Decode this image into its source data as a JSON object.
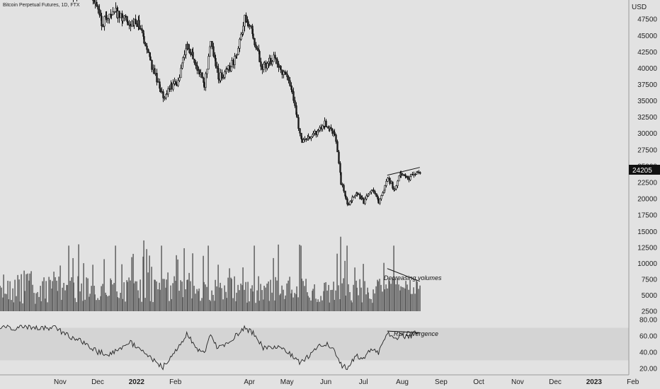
{
  "title": "Bitcoin Perpetual Futures, 1D, FTX",
  "currency": "USD",
  "last_price": "24205",
  "x_labels": [
    "Nov",
    "Dec",
    "2022",
    "Feb",
    "Apr",
    "May",
    "Jun",
    "Jul",
    "Aug",
    "Sep",
    "Oct",
    "Nov",
    "Dec",
    "2023",
    "Feb"
  ],
  "colors": {
    "background": "#e2e2e2",
    "candle": "#1a1a1a",
    "volume": "#555555",
    "rsi_band": "#d4d4d4"
  },
  "chart_data": [
    {
      "type": "candlestick",
      "name": "price",
      "yticks": [
        17500,
        20000,
        22500,
        25000,
        27500,
        30000,
        32500,
        35000,
        37500,
        40000,
        42500,
        45000,
        47500
      ],
      "ylim": [
        15000,
        50000
      ],
      "path": [
        [
          "2021-10-28",
          56000
        ],
        [
          "2021-11-10",
          51000
        ],
        [
          "2021-11-25",
          52000
        ],
        [
          "2021-12-04",
          47000
        ],
        [
          "2021-12-15",
          48500
        ],
        [
          "2021-12-27",
          47000
        ],
        [
          "2022-01-02",
          47000
        ],
        [
          "2022-01-10",
          42000
        ],
        [
          "2022-01-22",
          35500
        ],
        [
          "2022-01-27",
          37000
        ],
        [
          "2022-02-03",
          38000
        ],
        [
          "2022-02-10",
          44000
        ],
        [
          "2022-02-18",
          40000
        ],
        [
          "2022-02-24",
          37500
        ],
        [
          "2022-03-01",
          44000
        ],
        [
          "2022-03-07",
          38500
        ],
        [
          "2022-03-14",
          39500
        ],
        [
          "2022-03-22",
          42000
        ],
        [
          "2022-03-28",
          47500
        ],
        [
          "2022-04-02",
          46000
        ],
        [
          "2022-04-11",
          40000
        ],
        [
          "2022-04-20",
          41500
        ],
        [
          "2022-05-01",
          38500
        ],
        [
          "2022-05-05",
          36000
        ],
        [
          "2022-05-12",
          29000
        ],
        [
          "2022-05-20",
          29500
        ],
        [
          "2022-05-31",
          31500
        ],
        [
          "2022-06-08",
          30000
        ],
        [
          "2022-06-13",
          22500
        ],
        [
          "2022-06-18",
          19000
        ],
        [
          "2022-06-25",
          21000
        ],
        [
          "2022-07-01",
          19500
        ],
        [
          "2022-07-07",
          21500
        ],
        [
          "2022-07-13",
          19500
        ],
        [
          "2022-07-20",
          23200
        ],
        [
          "2022-07-26",
          21300
        ],
        [
          "2022-07-30",
          23800
        ],
        [
          "2022-08-06",
          23200
        ],
        [
          "2022-08-11",
          24000
        ],
        [
          "2022-08-15",
          24205
        ]
      ],
      "trendline": [
        [
          "2022-07-20",
          23600
        ],
        [
          "2022-08-15",
          24800
        ]
      ]
    },
    {
      "type": "bar",
      "name": "volume",
      "yticks": [
        2500,
        5000,
        7500,
        10000,
        12500,
        15000
      ],
      "ylim": [
        2000,
        16000
      ],
      "annotation": "Decreasing volumes",
      "trendline": [
        [
          "2022-07-20",
          9200
        ],
        [
          "2022-08-15",
          7200
        ]
      ]
    },
    {
      "type": "line",
      "name": "rsi",
      "yticks": [
        20,
        40,
        60,
        80
      ],
      "ylim": [
        16,
        84
      ],
      "band": [
        30,
        70
      ],
      "annotation": "RSI Divergence",
      "path": [
        [
          "2021-10-28",
          70
        ],
        [
          "2021-11-10",
          58
        ],
        [
          "2021-11-20",
          52
        ],
        [
          "2021-12-01",
          40
        ],
        [
          "2021-12-10",
          38
        ],
        [
          "2021-12-27",
          52
        ],
        [
          "2022-01-10",
          35
        ],
        [
          "2022-01-22",
          22
        ],
        [
          "2022-02-05",
          50
        ],
        [
          "2022-02-10",
          62
        ],
        [
          "2022-02-18",
          45
        ],
        [
          "2022-02-24",
          38
        ],
        [
          "2022-03-01",
          60
        ],
        [
          "2022-03-07",
          45
        ],
        [
          "2022-03-15",
          52
        ],
        [
          "2022-03-28",
          70
        ],
        [
          "2022-04-05",
          62
        ],
        [
          "2022-04-12",
          45
        ],
        [
          "2022-04-20",
          48
        ],
        [
          "2022-05-01",
          42
        ],
        [
          "2022-05-12",
          26
        ],
        [
          "2022-05-20",
          38
        ],
        [
          "2022-05-31",
          52
        ],
        [
          "2022-06-08",
          42
        ],
        [
          "2022-06-13",
          25
        ],
        [
          "2022-06-18",
          20
        ],
        [
          "2022-06-25",
          35
        ],
        [
          "2022-07-01",
          32
        ],
        [
          "2022-07-08",
          44
        ],
        [
          "2022-07-13",
          40
        ],
        [
          "2022-07-20",
          63
        ],
        [
          "2022-07-26",
          55
        ],
        [
          "2022-07-30",
          62
        ],
        [
          "2022-08-06",
          58
        ],
        [
          "2022-08-11",
          63
        ],
        [
          "2022-08-15",
          62
        ]
      ],
      "trendline": [
        [
          "2022-07-20",
          66
        ],
        [
          "2022-08-15",
          64
        ]
      ]
    }
  ]
}
